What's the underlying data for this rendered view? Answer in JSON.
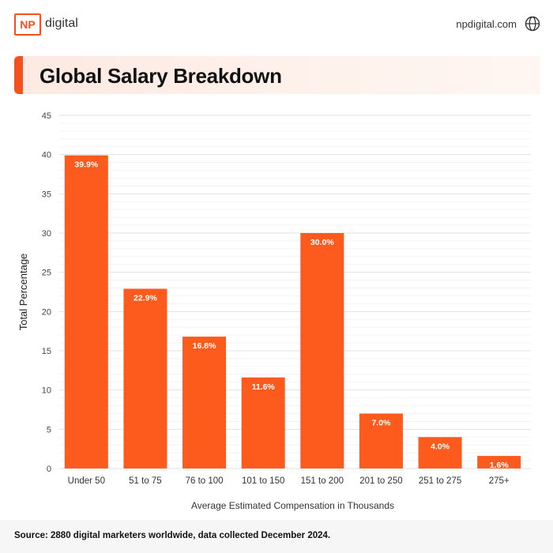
{
  "header": {
    "logo_mark": "NP",
    "logo_word": "digital",
    "site_url": "npdigital.com",
    "icon": "globe-icon"
  },
  "title": "Global Salary Breakdown",
  "footer": {
    "source": "Source: 2880 digital marketers worldwide, data collected December 2024."
  },
  "colors": {
    "accent": "#f4511e",
    "bar": "#fd5a1e",
    "grid": "#e6e6e6"
  },
  "chart_data": {
    "type": "bar",
    "categories": [
      "Under 50",
      "51 to 75",
      "76 to 100",
      "101 to 150",
      "151 to 200",
      "201 to 250",
      "251 to 275",
      "275+"
    ],
    "values": [
      39.9,
      22.9,
      16.8,
      11.6,
      30.0,
      7.0,
      4.0,
      1.6
    ],
    "data_labels": [
      "39.9%",
      "22.9%",
      "16.8%",
      "11.6%",
      "30.0%",
      "7.0%",
      "4.0%",
      "1.6%"
    ],
    "xlabel": "Average Estimated Compensation in Thousands",
    "ylabel": "Total Percentage",
    "ylim": [
      0,
      45
    ],
    "yticks": [
      0,
      5,
      10,
      15,
      20,
      25,
      30,
      35,
      40,
      45
    ],
    "grid": true
  }
}
